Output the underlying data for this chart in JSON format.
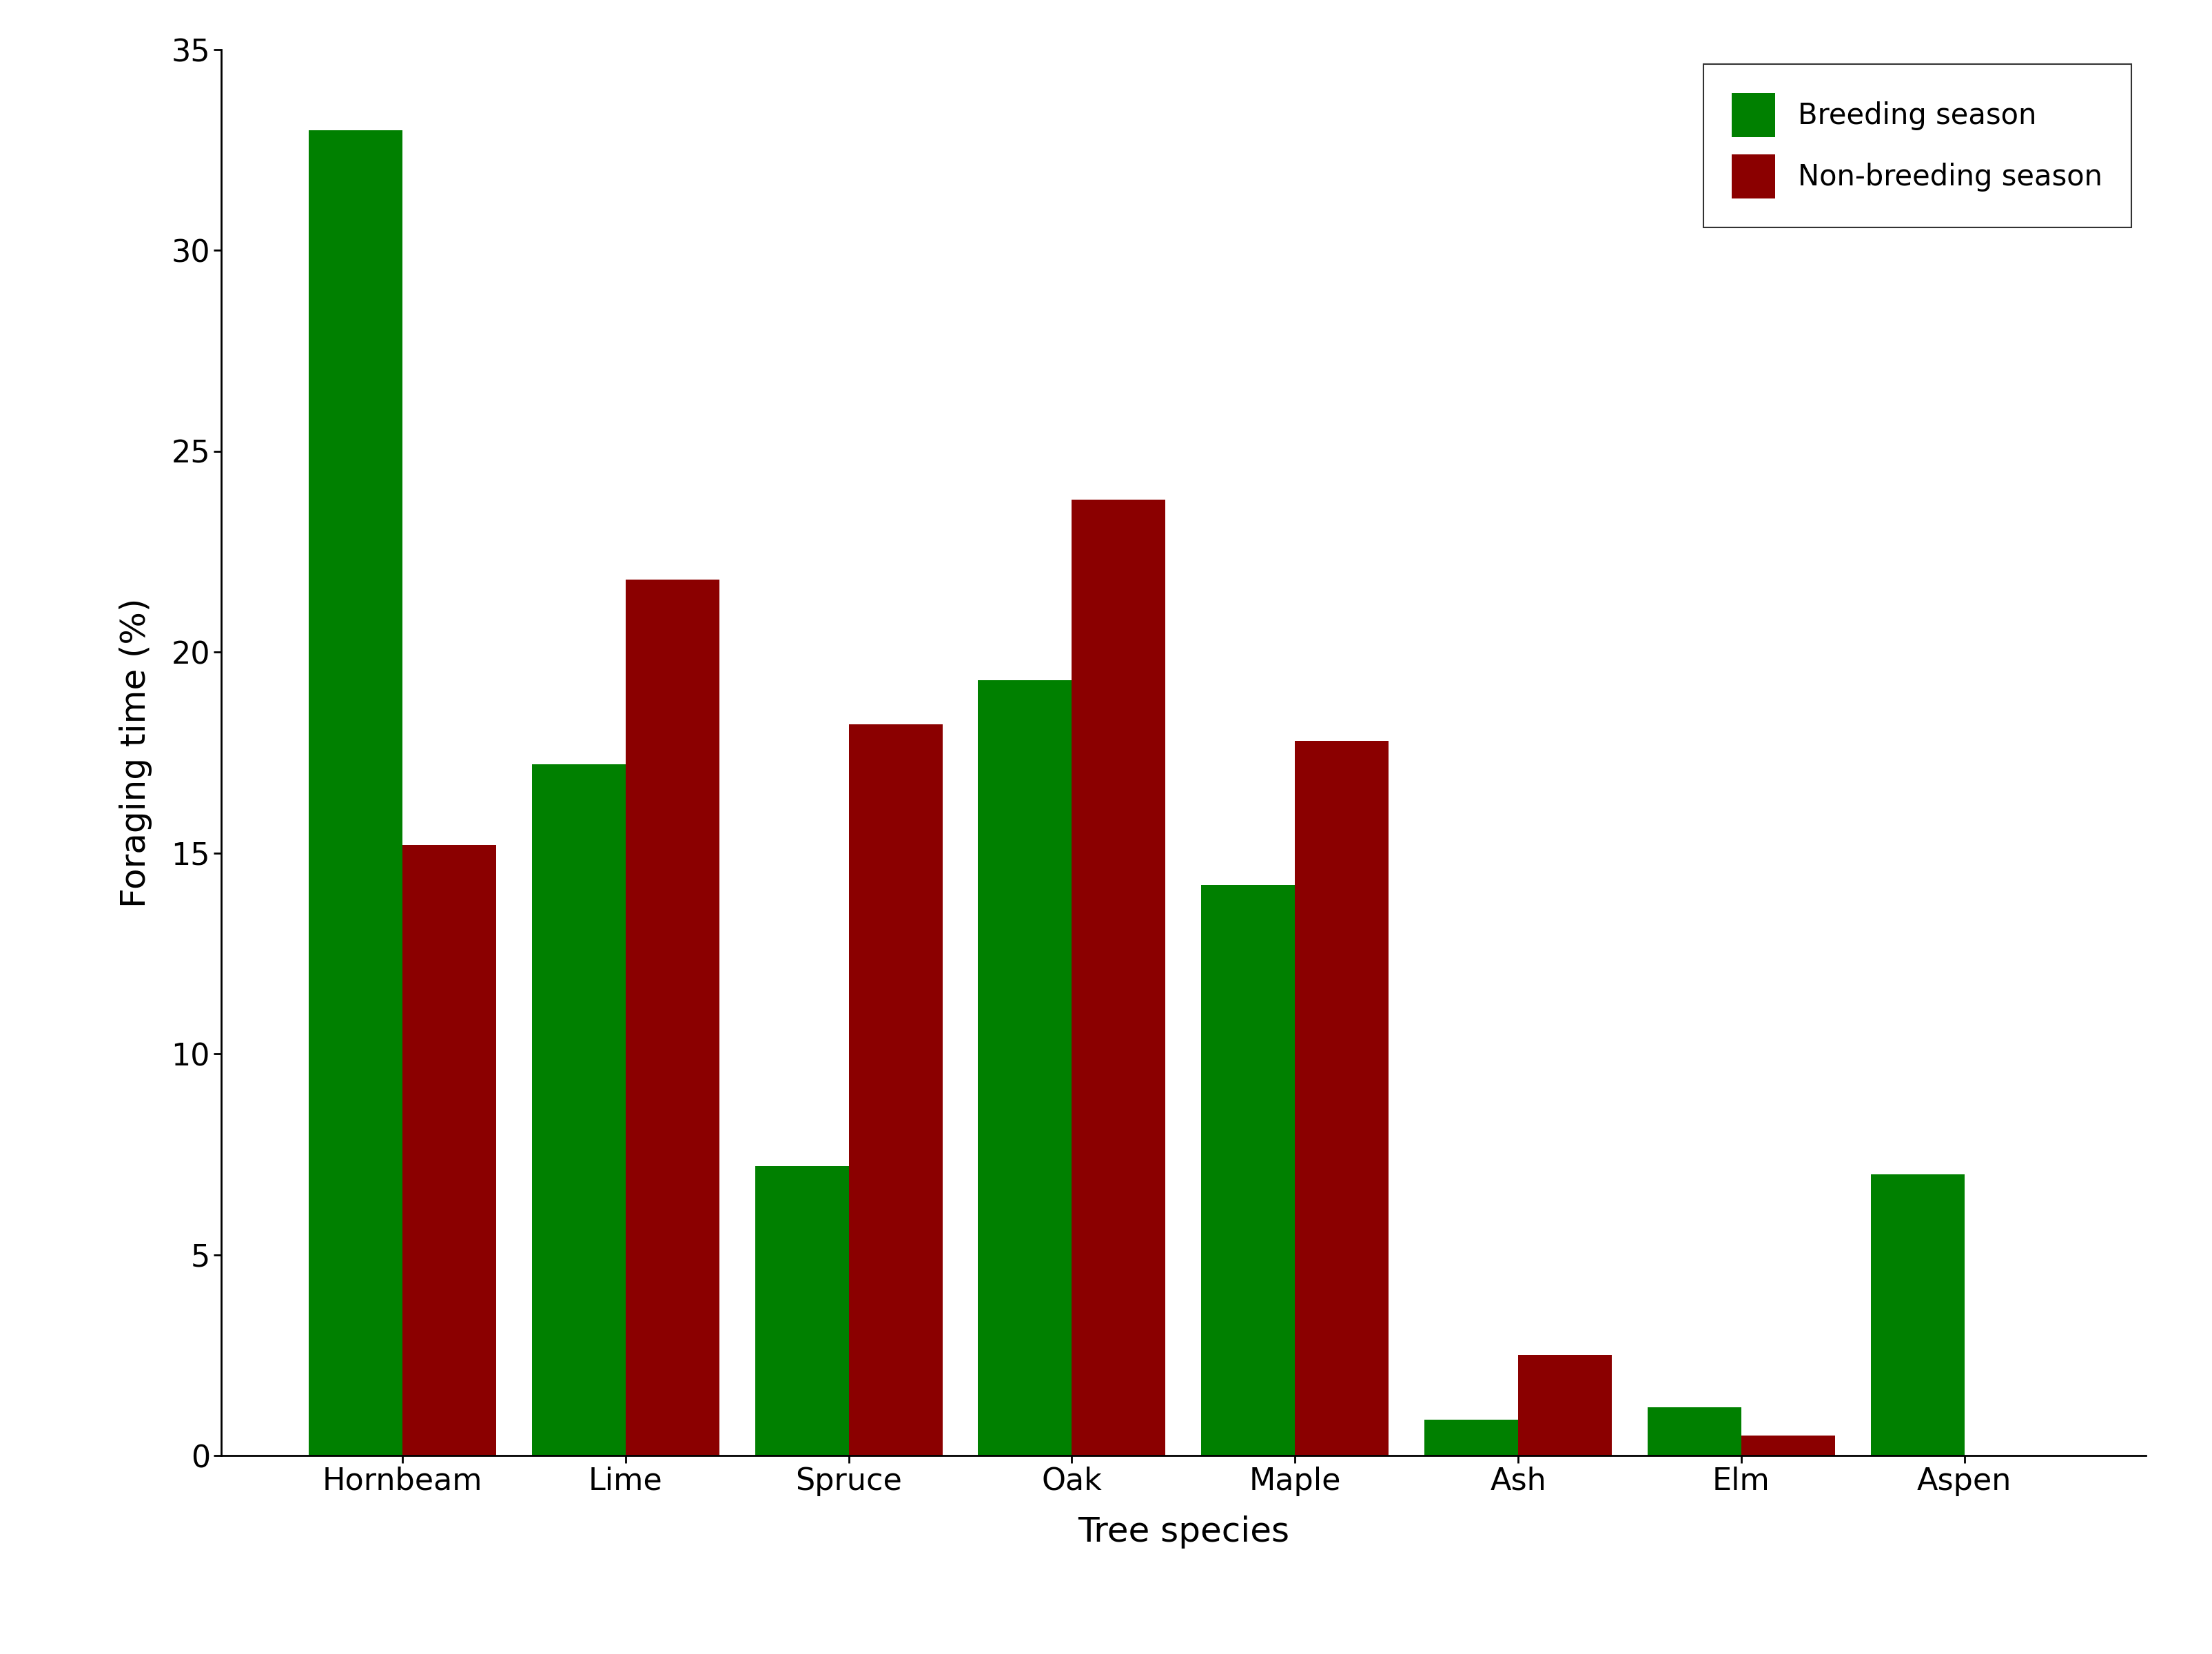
{
  "categories": [
    "Hornbeam",
    "Lime",
    "Spruce",
    "Oak",
    "Maple",
    "Ash",
    "Elm",
    "Aspen"
  ],
  "breeding": [
    33.0,
    17.2,
    7.2,
    19.3,
    14.2,
    0.9,
    1.2,
    7.0
  ],
  "non_breeding": [
    15.2,
    21.8,
    18.2,
    23.8,
    17.8,
    2.5,
    0.5,
    0.0
  ],
  "breeding_color": "#008000",
  "non_breeding_color": "#8B0000",
  "ylabel": "Foraging time (%)",
  "xlabel": "Tree species",
  "ylim": [
    0,
    35
  ],
  "yticks": [
    0,
    5,
    10,
    15,
    20,
    25,
    30,
    35
  ],
  "legend_labels": [
    "Breeding season",
    "Non-breeding season"
  ],
  "bar_width": 0.42,
  "background_color": "#ffffff",
  "tick_fontsize": 32,
  "label_fontsize": 36,
  "legend_fontsize": 30
}
